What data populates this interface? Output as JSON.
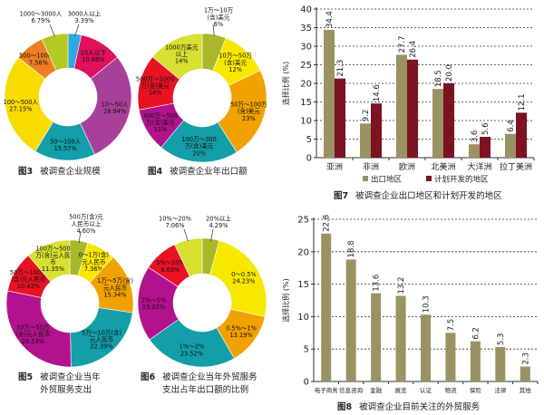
{
  "chart_data": [
    {
      "type": "pie",
      "title": "图3  被调查企业规模",
      "fig": "图3",
      "caption": "被调查企业规模",
      "slices": [
        {
          "label": "3000人以上",
          "value": 3.39,
          "text": "3.39%",
          "color": "#2ea6e0"
        },
        {
          "label": "10人以下",
          "value": 10.88,
          "text": "10.88%",
          "color": "#e0105c"
        },
        {
          "label": "10～50人",
          "value": 28.94,
          "text": "28.94%",
          "color": "#a8409a"
        },
        {
          "label": "50～100人",
          "value": 15.57,
          "text": "15.57%",
          "color": "#139ea8"
        },
        {
          "label": "100～500人",
          "value": 27.15,
          "text": "27.15%",
          "color": "#f8dc00"
        },
        {
          "label": "500～1000人",
          "value": 7.58,
          "text": "7.58%",
          "color": "#ee7e22"
        },
        {
          "label": "1000～3000人",
          "value": 6.79,
          "text": "6.79%",
          "color": "#b4ca22"
        }
      ]
    },
    {
      "type": "pie",
      "title": "图4  被调查企业年出口额",
      "fig": "图4",
      "caption": "被调查企业年出口额",
      "slices": [
        {
          "label": "1万～10万\n(含)美元",
          "value": 6,
          "text": "6%",
          "color": "#a8b82a"
        },
        {
          "label": "10万～50万\n(含)美元",
          "value": 12,
          "text": "12%",
          "color": "#f8e800"
        },
        {
          "label": "50万～100万\n(含)美元",
          "value": 23,
          "text": "23%",
          "color": "#f2a200"
        },
        {
          "label": "100万～300\n万(含)美元",
          "value": 20,
          "text": "20%",
          "color": "#139ea8"
        },
        {
          "label": "300万～500\n万(含)美元",
          "value": 11,
          "text": "11%",
          "color": "#b2128e"
        },
        {
          "label": "500万～1000\n万(含)美元",
          "value": 14,
          "text": "14%",
          "color": "#e81224"
        },
        {
          "label": "1000万美元\n以上",
          "value": 14,
          "text": "14%",
          "color": "#d8e030"
        }
      ]
    },
    {
      "type": "pie",
      "title": "图5  被调查企业当年外贸服务支出",
      "fig": "图5",
      "caption": "被调查企业当年\n外贸服务支出",
      "slices": [
        {
          "label": "500万(含)元\n人民币以上",
          "value": 4.6,
          "text": "4.60%",
          "color": "#a8b82a"
        },
        {
          "label": "0～1万(含)\n元人民币",
          "value": 7.36,
          "text": "7.36%",
          "color": "#f8e800"
        },
        {
          "label": "1万～5万(含)\n元人民币",
          "value": 15.34,
          "text": "15.34%",
          "color": "#f2a200"
        },
        {
          "label": "5万～10万(含)\n元人民币",
          "value": 22.39,
          "text": "22.39%",
          "color": "#139ea8"
        },
        {
          "label": "10万～50万\n(含)元人民币",
          "value": 28.53,
          "text": "28.53%",
          "color": "#b2128e"
        },
        {
          "label": "50万～100万\n(含)元人民币",
          "value": 10.43,
          "text": "10.43%",
          "color": "#e81224"
        },
        {
          "label": "100万～500\n万(含)元人民\n币",
          "value": 11.35,
          "text": "11.35%",
          "color": "#d8e030"
        }
      ]
    },
    {
      "type": "pie",
      "title": "图6  被调查企业当年外贸服务支出占年出口额的比例",
      "fig": "图6",
      "caption": "被调查企业当年外贸服务\n支出占年出口额的比例",
      "slices": [
        {
          "label": "20%以上",
          "value": 4.29,
          "text": "4.29%",
          "color": "#a8b82a"
        },
        {
          "label": "0～0.5%",
          "value": 24.23,
          "text": "24.23%",
          "color": "#f8e800"
        },
        {
          "label": "0.5%～1%",
          "value": 13.19,
          "text": "13.19%",
          "color": "#f2a200"
        },
        {
          "label": "1%～2%",
          "value": 23.52,
          "text": "23.52%",
          "color": "#139ea8"
        },
        {
          "label": "2%～5%",
          "value": 19.02,
          "text": "19.02%",
          "color": "#b2128e"
        },
        {
          "label": "5%～10%",
          "value": 8.69,
          "text": "8.69%",
          "color": "#e81224"
        },
        {
          "label": "10%～20%",
          "value": 7.06,
          "text": "7.06%",
          "color": "#d8e030"
        }
      ]
    },
    {
      "type": "bar",
      "title": "图7  被调查企业出口地区和计划开发的地区",
      "fig": "图7",
      "caption": "被调查企业出口地区和计划开发的地区",
      "ylabel": "选择比例 (%)",
      "ylim": [
        0,
        40
      ],
      "yticks": [
        0,
        5,
        10,
        15,
        20,
        25,
        30,
        35,
        40
      ],
      "grid": true,
      "legend": "bottom",
      "categories": [
        "亚洲",
        "非洲",
        "欧洲",
        "北美洲",
        "大洋洲",
        "拉丁美洲"
      ],
      "series": [
        {
          "name": "出口地区",
          "color": "#9a9262",
          "values": [
            34.4,
            9.2,
            27.7,
            18.5,
            3.6,
            6.4
          ]
        },
        {
          "name": "计划开发的地区",
          "color": "#7c1222",
          "values": [
            21.3,
            14.6,
            26.4,
            20.0,
            5.6,
            12.1
          ]
        }
      ]
    },
    {
      "type": "bar",
      "title": "图8  被调查企业目前关注的外贸服务",
      "fig": "图8",
      "caption": "被调查企业目前关注的外贸服务",
      "ylabel": "选择比例 (%)",
      "ylim": [
        0,
        25
      ],
      "yticks": [
        0,
        5,
        10,
        15,
        20,
        25
      ],
      "grid": true,
      "categories": [
        "电子商务",
        "信息咨询",
        "金融",
        "展览",
        "认证",
        "物流",
        "保险",
        "法律",
        "其他"
      ],
      "series": [
        {
          "color": "#9a9262",
          "values": [
            22.8,
            18.8,
            13.6,
            13.2,
            10.3,
            7.5,
            6.2,
            5.3,
            2.3
          ]
        }
      ]
    }
  ]
}
